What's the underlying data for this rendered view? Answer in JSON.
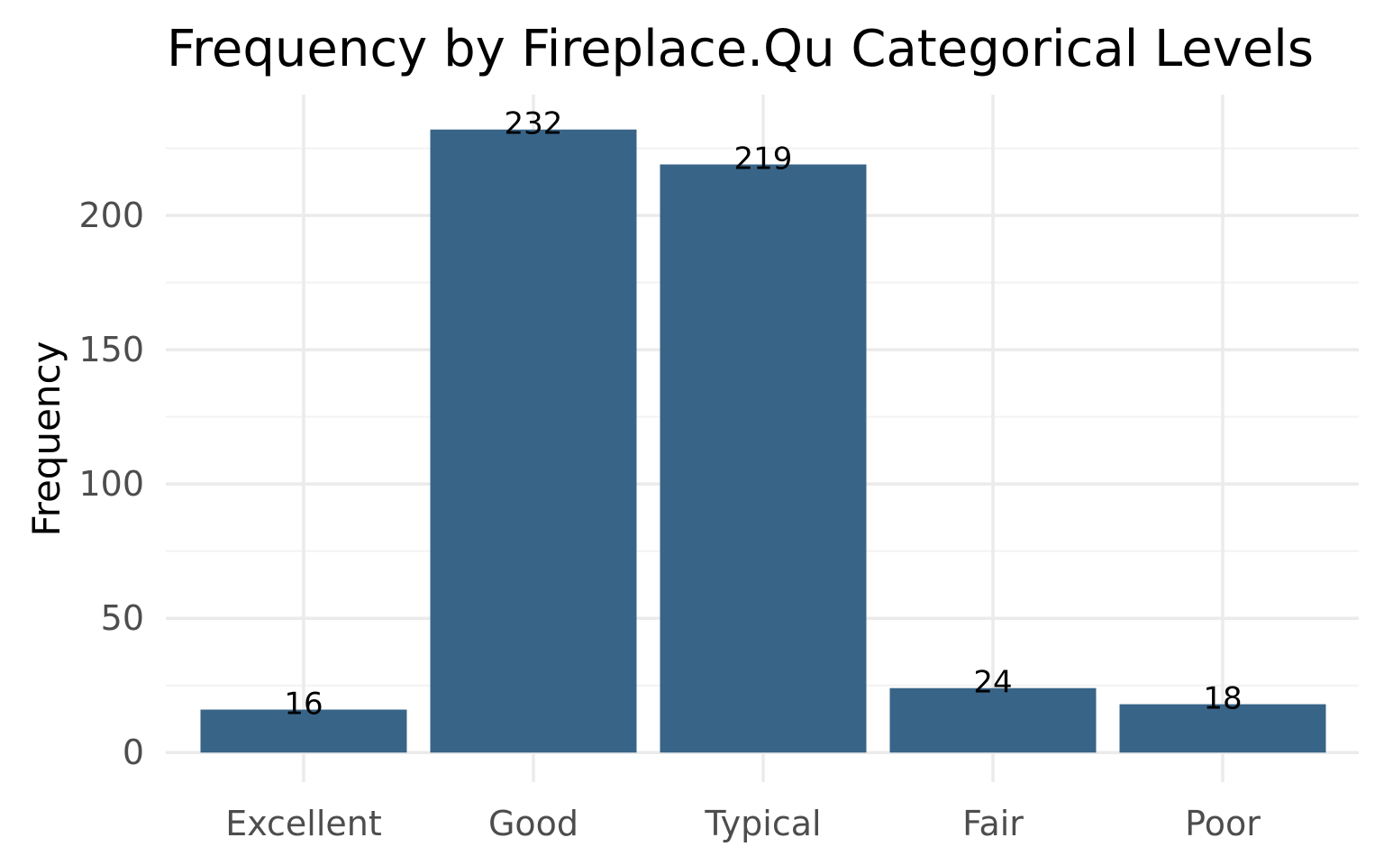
{
  "chart_data": {
    "type": "bar",
    "title": "Frequency by Fireplace.Qu Categorical Levels",
    "xlabel": "",
    "ylabel": "Frequency",
    "categories": [
      "Excellent",
      "Good",
      "Typical",
      "Fair",
      "Poor"
    ],
    "values": [
      16,
      232,
      219,
      24,
      18
    ],
    "data_labels": [
      "16",
      "232",
      "219",
      "24",
      "18"
    ],
    "y_ticks": [
      0,
      50,
      100,
      150,
      200
    ],
    "y_tick_labels": [
      "0",
      "50",
      "100",
      "150",
      "200"
    ],
    "ylim": [
      -11,
      245
    ],
    "grid": true,
    "legend": "none",
    "colors": {
      "bar": "#386488",
      "grid_major": "#ebebeb",
      "grid_minor": "#f2f2f2",
      "tick_text": "#4d4d4d"
    }
  }
}
